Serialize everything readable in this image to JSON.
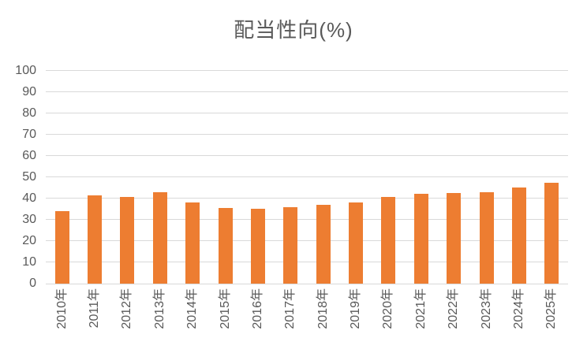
{
  "chart_data": {
    "type": "bar",
    "title": "配当性向(%)",
    "categories": [
      "2010年",
      "2011年",
      "2012年",
      "2013年",
      "2014年",
      "2015年",
      "2016年",
      "2017年",
      "2018年",
      "2019年",
      "2020年",
      "2021年",
      "2022年",
      "2023年",
      "2024年",
      "2025年"
    ],
    "values": [
      34,
      41.5,
      40.5,
      43,
      38,
      35.5,
      35,
      36,
      37,
      38,
      40.5,
      42,
      42.5,
      43,
      45,
      47.5
    ],
    "xlabel": "",
    "ylabel": "",
    "ylim": [
      0,
      100
    ],
    "ytick_interval": 10,
    "ytick_labels": [
      "0",
      "10",
      "20",
      "30",
      "40",
      "50",
      "60",
      "70",
      "80",
      "90",
      "100"
    ],
    "grid": "horizontal-only",
    "legend": "none",
    "bar_color": "#ED7D31",
    "grid_color": "#D9D9D9",
    "axis_text_color": "#595959",
    "title_color": "#595959",
    "background_color": "#FFFFFF"
  }
}
